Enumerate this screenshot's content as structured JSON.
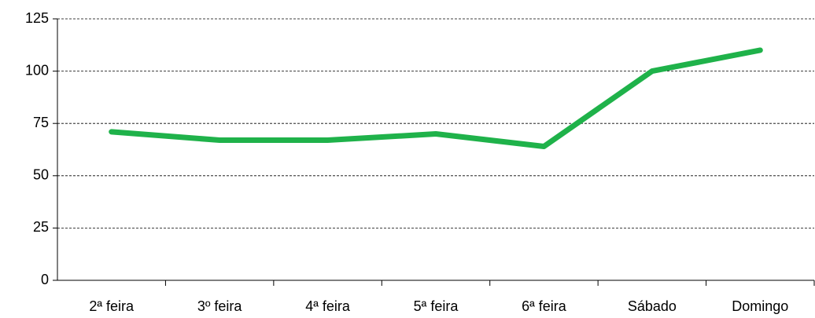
{
  "chart_data": {
    "type": "line",
    "categories": [
      "2ª feira",
      "3º feira",
      "4ª feira",
      "5ª feira",
      "6ª feira",
      "Sábado",
      "Domingo"
    ],
    "series": [
      {
        "name": null,
        "color": "#1fb24a",
        "values": [
          71,
          67,
          67,
          70,
          64,
          100,
          110
        ]
      }
    ],
    "ylim": [
      0,
      125
    ],
    "yticks": [
      0,
      25,
      50,
      75,
      100,
      125
    ],
    "grid": true
  }
}
